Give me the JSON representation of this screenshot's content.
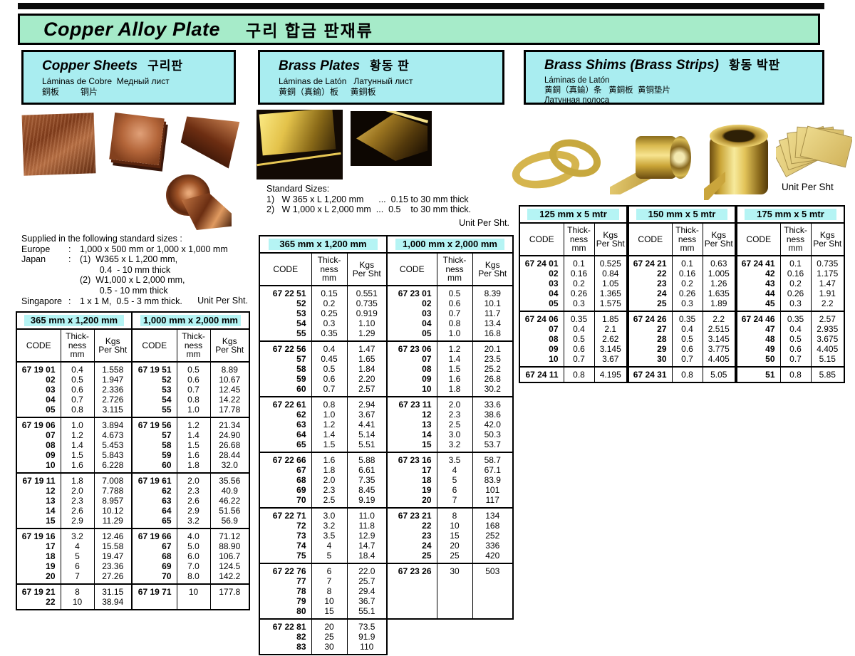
{
  "header": {
    "title_en": "Copper Alloy Plate",
    "title_ko": "구리 합금 판재류"
  },
  "colors": {
    "title_bg": "#a6ebc9",
    "section_bg": "#a9edf0",
    "band_bg": "#b5f4f4",
    "border": "#000000"
  },
  "sections": {
    "copper": {
      "title_en": "Copper Sheets",
      "title_ko": "구리판",
      "subtitle_lines": [
        "Láminas de Cobre  Медный лист",
        "銅板         铜片"
      ],
      "note": {
        "heading": "Supplied in the following standard sizes :",
        "rows": [
          {
            "label": "Europe",
            "text": "1,000 x 500 mm or 1,000 x 1,000 mm"
          },
          {
            "label": "Japan",
            "text": "(1)  W365 x L 1,200 mm,"
          },
          {
            "label": "",
            "text": "        0.4  - 10 mm thick"
          },
          {
            "label": "",
            "text": "(2)  W1,000 x L 2,000 mm,"
          },
          {
            "label": "",
            "text": "        0.5 - 10 mm thick"
          },
          {
            "label": "Singapore",
            "text": "1 x 1 M,  0.5 - 3 mm thick."
          }
        ],
        "unit": "Unit Per Sht."
      }
    },
    "brass": {
      "title_en": "Brass Plates",
      "title_ko": "황동 판",
      "subtitle_lines": [
        "Láminas de Latón   Латунный лист",
        "黄銅（真鍮）板     黄銅板"
      ],
      "note": {
        "heading": "Standard Sizes:",
        "lines": [
          "1)   W 365 x L 1,200 mm      ...  0.15 to 30 mm thick",
          "2)   W 1,000 x L 2,000 mm  ...  0.5    to 30 mm thick."
        ],
        "unit": "Unit Per Sht."
      }
    },
    "shims": {
      "title_en": "Brass Shims (Brass Strips)",
      "title_ko": "황동 박판",
      "subtitle_lines": [
        "Láminas de Latón",
        "黄銅（真鍮）条   黄銅板  黄铜垫片",
        "Латунная полоса"
      ],
      "unit": "Unit Per Sht"
    }
  },
  "tables": {
    "col_headers": {
      "code": "CODE",
      "thickness": "Thick-\nness\nmm",
      "kgs": "Kgs\nPer Sht"
    },
    "copper": {
      "size_headers": [
        "365 mm x 1,200 mm",
        "1,000 mm x 2,000 mm"
      ],
      "groups": [
        [
          [
            [
              "67 19 01",
              "0.4",
              "1.558"
            ],
            [
              "02",
              "0.5",
              "1.947"
            ],
            [
              "03",
              "0.6",
              "2.336"
            ],
            [
              "04",
              "0.7",
              "2.726"
            ],
            [
              "05",
              "0.8",
              "3.115"
            ]
          ],
          [
            [
              "67 19 51",
              "0.5",
              "8.89"
            ],
            [
              "52",
              "0.6",
              "10.67"
            ],
            [
              "53",
              "0.7",
              "12.45"
            ],
            [
              "54",
              "0.8",
              "14.22"
            ],
            [
              "55",
              "1.0",
              "17.78"
            ]
          ]
        ],
        [
          [
            [
              "67 19 06",
              "1.0",
              "3.894"
            ],
            [
              "07",
              "1.2",
              "4.673"
            ],
            [
              "08",
              "1.4",
              "5.453"
            ],
            [
              "09",
              "1.5",
              "5.843"
            ],
            [
              "10",
              "1.6",
              "6.228"
            ]
          ],
          [
            [
              "67 19 56",
              "1.2",
              "21.34"
            ],
            [
              "57",
              "1.4",
              "24.90"
            ],
            [
              "58",
              "1.5",
              "26.68"
            ],
            [
              "59",
              "1.6",
              "28.44"
            ],
            [
              "60",
              "1.8",
              "32.0"
            ]
          ]
        ],
        [
          [
            [
              "67 19 11",
              "1.8",
              "7.008"
            ],
            [
              "12",
              "2.0",
              "7.788"
            ],
            [
              "13",
              "2.3",
              "8.957"
            ],
            [
              "14",
              "2.6",
              "10.12"
            ],
            [
              "15",
              "2.9",
              "11.29"
            ]
          ],
          [
            [
              "67 19 61",
              "2.0",
              "35.56"
            ],
            [
              "62",
              "2.3",
              "40.9"
            ],
            [
              "63",
              "2.6",
              "46.22"
            ],
            [
              "64",
              "2.9",
              "51.56"
            ],
            [
              "65",
              "3.2",
              "56.9"
            ]
          ]
        ],
        [
          [
            [
              "67 19 16",
              "3.2",
              "12.46"
            ],
            [
              "17",
              "4",
              "15.58"
            ],
            [
              "18",
              "5",
              "19.47"
            ],
            [
              "19",
              "6",
              "23.36"
            ],
            [
              "20",
              "7",
              "27.26"
            ]
          ],
          [
            [
              "67 19 66",
              "4.0",
              "71.12"
            ],
            [
              "67",
              "5.0",
              "88.90"
            ],
            [
              "68",
              "6.0",
              "106.7"
            ],
            [
              "69",
              "7.0",
              "124.5"
            ],
            [
              "70",
              "8.0",
              "142.2"
            ]
          ]
        ],
        [
          [
            [
              "67 19 21",
              "8",
              "31.15"
            ],
            [
              "22",
              "10",
              "38.94"
            ]
          ],
          [
            [
              "67 19 71",
              "10",
              "177.8"
            ]
          ]
        ]
      ]
    },
    "brass": {
      "size_headers": [
        "365 mm x 1,200 mm",
        "1,000 mm x 2,000 mm"
      ],
      "groups": [
        [
          [
            [
              "67 22 51",
              "0.15",
              "0.551"
            ],
            [
              "52",
              "0.2",
              "0.735"
            ],
            [
              "53",
              "0.25",
              "0.919"
            ],
            [
              "54",
              "0.3",
              "1.10"
            ],
            [
              "55",
              "0.35",
              "1.29"
            ]
          ],
          [
            [
              "67 23 01",
              "0.5",
              "8.39"
            ],
            [
              "02",
              "0.6",
              "10.1"
            ],
            [
              "03",
              "0.7",
              "11.7"
            ],
            [
              "04",
              "0.8",
              "13.4"
            ],
            [
              "05",
              "1.0",
              "16.8"
            ]
          ]
        ],
        [
          [
            [
              "67 22 56",
              "0.4",
              "1.47"
            ],
            [
              "57",
              "0.45",
              "1.65"
            ],
            [
              "58",
              "0.5",
              "1.84"
            ],
            [
              "59",
              "0.6",
              "2.20"
            ],
            [
              "60",
              "0.7",
              "2.57"
            ]
          ],
          [
            [
              "67 23 06",
              "1.2",
              "20.1"
            ],
            [
              "07",
              "1.4",
              "23.5"
            ],
            [
              "08",
              "1.5",
              "25.2"
            ],
            [
              "09",
              "1.6",
              "26.8"
            ],
            [
              "10",
              "1.8",
              "30.2"
            ]
          ]
        ],
        [
          [
            [
              "67 22 61",
              "0.8",
              "2.94"
            ],
            [
              "62",
              "1.0",
              "3.67"
            ],
            [
              "63",
              "1.2",
              "4.41"
            ],
            [
              "64",
              "1.4",
              "5.14"
            ],
            [
              "65",
              "1.5",
              "5.51"
            ]
          ],
          [
            [
              "67 23 11",
              "2.0",
              "33.6"
            ],
            [
              "12",
              "2.3",
              "38.6"
            ],
            [
              "13",
              "2.5",
              "42.0"
            ],
            [
              "14",
              "3.0",
              "50.3"
            ],
            [
              "15",
              "3.2",
              "53.7"
            ]
          ]
        ],
        [
          [
            [
              "67 22 66",
              "1.6",
              "5.88"
            ],
            [
              "67",
              "1.8",
              "6.61"
            ],
            [
              "68",
              "2.0",
              "7.35"
            ],
            [
              "69",
              "2.3",
              "8.45"
            ],
            [
              "70",
              "2.5",
              "9.19"
            ]
          ],
          [
            [
              "67 23 16",
              "3.5",
              "58.7"
            ],
            [
              "17",
              "4",
              "67.1"
            ],
            [
              "18",
              "5",
              "83.9"
            ],
            [
              "19",
              "6",
              "101"
            ],
            [
              "20",
              "7",
              "117"
            ]
          ]
        ],
        [
          [
            [
              "67 22 71",
              "3.0",
              "11.0"
            ],
            [
              "72",
              "3.2",
              "11.8"
            ],
            [
              "73",
              "3.5",
              "12.9"
            ],
            [
              "74",
              "4",
              "14.7"
            ],
            [
              "75",
              "5",
              "18.4"
            ]
          ],
          [
            [
              "67 23 21",
              "8",
              "134"
            ],
            [
              "22",
              "10",
              "168"
            ],
            [
              "23",
              "15",
              "252"
            ],
            [
              "24",
              "20",
              "336"
            ],
            [
              "25",
              "25",
              "420"
            ]
          ]
        ],
        [
          [
            [
              "67 22 76",
              "6",
              "22.0"
            ],
            [
              "77",
              "7",
              "25.7"
            ],
            [
              "78",
              "8",
              "29.4"
            ],
            [
              "79",
              "10",
              "36.7"
            ],
            [
              "80",
              "15",
              "55.1"
            ]
          ],
          [
            [
              "67 23 26",
              "30",
              "503"
            ]
          ]
        ],
        [
          [
            [
              "67 22 81",
              "20",
              "73.5"
            ],
            [
              "82",
              "25",
              "91.9"
            ],
            [
              "83",
              "30",
              "110"
            ]
          ],
          null
        ]
      ]
    },
    "shims": {
      "size_headers": [
        "125 mm x 5 mtr",
        "150 mm x 5 mtr",
        "175 mm x 5 mtr"
      ],
      "groups": [
        [
          [
            [
              "67 24 01",
              "0.1",
              "0.525"
            ],
            [
              "02",
              "0.16",
              "0.84"
            ],
            [
              "03",
              "0.2",
              "1.05"
            ],
            [
              "04",
              "0.26",
              "1.365"
            ],
            [
              "05",
              "0.3",
              "1.575"
            ]
          ],
          [
            [
              "67 24 21",
              "0.1",
              "0.63"
            ],
            [
              "22",
              "0.16",
              "1.005"
            ],
            [
              "23",
              "0.2",
              "1.26"
            ],
            [
              "24",
              "0.26",
              "1.635"
            ],
            [
              "25",
              "0.3",
              "1.89"
            ]
          ],
          [
            [
              "67 24 41",
              "0.1",
              "0.735"
            ],
            [
              "42",
              "0.16",
              "1.175"
            ],
            [
              "43",
              "0.2",
              "1.47"
            ],
            [
              "44",
              "0.26",
              "1.91"
            ],
            [
              "45",
              "0.3",
              "2.2"
            ]
          ]
        ],
        [
          [
            [
              "67 24 06",
              "0.35",
              "1.85"
            ],
            [
              "07",
              "0.4",
              "2.1"
            ],
            [
              "08",
              "0.5",
              "2.62"
            ],
            [
              "09",
              "0.6",
              "3.145"
            ],
            [
              "10",
              "0.7",
              "3.67"
            ]
          ],
          [
            [
              "67 24 26",
              "0.35",
              "2.2"
            ],
            [
              "27",
              "0.4",
              "2.515"
            ],
            [
              "28",
              "0.5",
              "3.145"
            ],
            [
              "29",
              "0.6",
              "3.775"
            ],
            [
              "30",
              "0.7",
              "4.405"
            ]
          ],
          [
            [
              "67 24 46",
              "0.35",
              "2.57"
            ],
            [
              "47",
              "0.4",
              "2.935"
            ],
            [
              "48",
              "0.5",
              "3.675"
            ],
            [
              "49",
              "0.6",
              "4.405"
            ],
            [
              "50",
              "0.7",
              "5.15"
            ]
          ]
        ],
        [
          [
            [
              "67 24 11",
              "0.8",
              "4.195"
            ]
          ],
          [
            [
              "67 24 31",
              "0.8",
              "5.05"
            ]
          ],
          [
            [
              "51",
              "0.8",
              "5.85"
            ]
          ]
        ]
      ]
    }
  }
}
